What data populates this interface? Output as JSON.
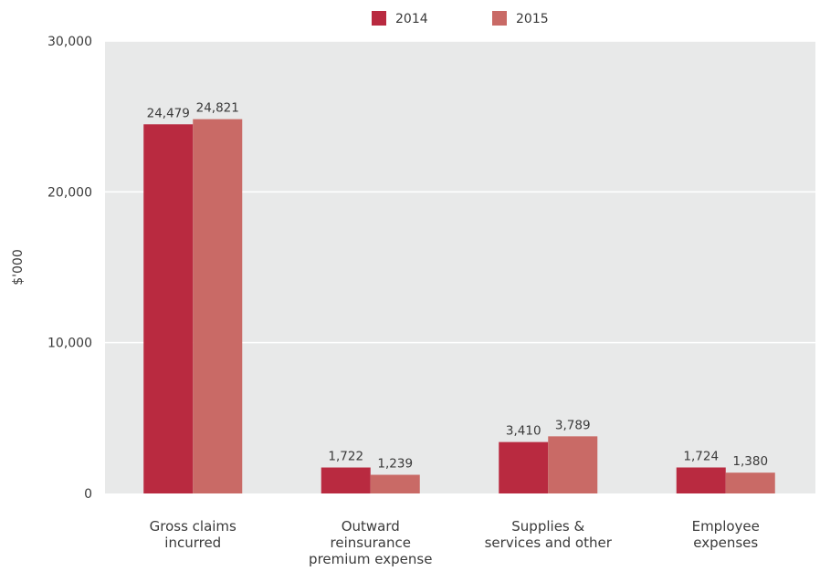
{
  "chart_data": {
    "type": "bar",
    "title": "",
    "xlabel": "",
    "ylabel": "$'000",
    "ylim": [
      0,
      30000
    ],
    "yticks": [
      0,
      10000,
      20000,
      30000
    ],
    "ytick_labels": [
      "0",
      "10,000",
      "20,000",
      "30,000"
    ],
    "grid": true,
    "legend_position": "top",
    "categories": [
      [
        "Gross claims",
        "incurred"
      ],
      [
        "Outward",
        "reinsurance",
        "premium expense"
      ],
      [
        "Supplies &",
        "services and other"
      ],
      [
        "Employee",
        "expenses"
      ]
    ],
    "series": [
      {
        "name": "2014",
        "color": "#b92a40",
        "values": [
          24479,
          1722,
          3410,
          1724
        ],
        "labels": [
          "24,479",
          "1,722",
          "3,410",
          "1,724"
        ]
      },
      {
        "name": "2015",
        "color": "#c96a66",
        "values": [
          24821,
          1239,
          3789,
          1380
        ],
        "labels": [
          "24,821",
          "1,239",
          "3,789",
          "1,380"
        ]
      }
    ],
    "plot_background": "#e8e9e9",
    "gridline_color": "#ffffff"
  }
}
